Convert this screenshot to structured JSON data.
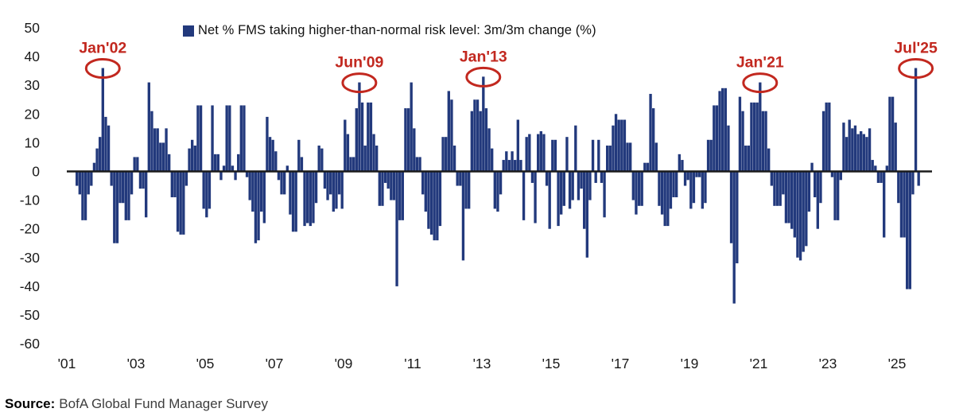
{
  "page": {
    "background": "#ffffff"
  },
  "legend": {
    "label": "Net % FMS taking higher-than-normal risk level: 3m/3m change (%)",
    "swatch_color": "#22397c"
  },
  "source": {
    "prefix": "Source:",
    "text": "BofA Global Fund Manager Survey"
  },
  "colors": {
    "bar": "#22397c",
    "annotation_red": "#c2281f",
    "axis_line": "#1b1b1b",
    "tick_text": "#1a1a1a",
    "source_text": "#3d3d3d"
  },
  "chart_data": {
    "type": "bar",
    "title": "",
    "legend_entry": "Net % FMS taking higher-than-normal risk level: 3m/3m change (%)",
    "frequency": "monthly",
    "start_month": "2001-04",
    "end_month": "2025-08",
    "ylim": [
      -60,
      50
    ],
    "grid": false,
    "legend_position": "top-center",
    "yticks": [
      50,
      40,
      30,
      20,
      10,
      0,
      -10,
      -20,
      -30,
      -40,
      -50,
      -60
    ],
    "xticks": [
      "'01",
      "'03",
      "'05",
      "'07",
      "'09",
      "'11",
      "'13",
      "'15",
      "'17",
      "'19",
      "'21",
      "'23",
      "'25"
    ],
    "values": [
      -5,
      -8,
      -17,
      -17,
      -8,
      -5,
      3,
      8,
      12,
      36,
      19,
      16,
      -5,
      -25,
      -25,
      -11,
      -11,
      -17,
      -17,
      -8,
      5,
      5,
      -6,
      -6,
      -16,
      31,
      21,
      15,
      15,
      10,
      10,
      15,
      6,
      -9,
      -9,
      -21,
      -22,
      -22,
      -5,
      8,
      11,
      9,
      23,
      23,
      -13,
      -16,
      -13,
      23,
      6,
      6,
      -3,
      2,
      23,
      23,
      2,
      -3,
      6,
      23,
      23,
      -2,
      -10,
      -14,
      -25,
      -24,
      -14,
      -18,
      19,
      12,
      11,
      7,
      -3,
      -8,
      -8,
      2,
      -15,
      -21,
      -21,
      11,
      5,
      -19,
      -18,
      -19,
      -18,
      -11,
      9,
      8,
      -6,
      -10,
      -8,
      -14,
      -13,
      -8,
      -13,
      18,
      13,
      5,
      5,
      22,
      31,
      24,
      9,
      24,
      24,
      13,
      9,
      -12,
      -12,
      -4,
      -6,
      -10,
      -10,
      -40,
      -17,
      -17,
      22,
      22,
      31,
      15,
      5,
      5,
      -8,
      -14,
      -20,
      -22,
      -24,
      -24,
      -19,
      12,
      12,
      28,
      25,
      9,
      -5,
      -5,
      -31,
      -13,
      -13,
      21,
      25,
      25,
      21,
      33,
      22,
      15,
      8,
      -13,
      -14,
      -8,
      4,
      7,
      4,
      7,
      4,
      18,
      4,
      -17,
      12,
      13,
      -4,
      -18,
      13,
      14,
      13,
      -5,
      -20,
      11,
      11,
      -19,
      -15,
      -12,
      12,
      -13,
      -10,
      16,
      -10,
      -6,
      -20,
      -30,
      -10,
      11,
      -4,
      11,
      -4,
      -16,
      9,
      9,
      16,
      20,
      18,
      18,
      18,
      10,
      10,
      -10,
      -15,
      -12,
      -12,
      3,
      3,
      27,
      22,
      10,
      -12,
      -15,
      -19,
      -19,
      -13,
      -9,
      -9,
      6,
      4,
      -5,
      -3,
      -13,
      -11,
      -2,
      -2,
      -13,
      -11,
      11,
      11,
      23,
      23,
      28,
      29,
      29,
      16,
      -25,
      -46,
      -32,
      26,
      21,
      9,
      9,
      24,
      24,
      24,
      31,
      21,
      21,
      8,
      -5,
      -12,
      -12,
      -12,
      -8,
      -18,
      -18,
      -20,
      -23,
      -30,
      -31,
      -28,
      -26,
      -14,
      3,
      -9,
      -20,
      -11,
      21,
      24,
      24,
      -2,
      -17,
      -17,
      -3,
      17,
      12,
      18,
      15,
      16,
      13,
      14,
      13,
      12,
      15,
      4,
      2,
      -4,
      -4,
      -23,
      2,
      26,
      26,
      17,
      -11,
      -23,
      -23,
      -41,
      -41,
      -8,
      36,
      -5
    ],
    "annotations": [
      {
        "label": "Jan'02",
        "month": "2002-01",
        "value": 36
      },
      {
        "label": "Jun'09",
        "month": "2009-06",
        "value": 31
      },
      {
        "label": "Jan'13",
        "month": "2013-01",
        "value": 33
      },
      {
        "label": "Jan'21",
        "month": "2021-01",
        "value": 31
      },
      {
        "label": "Jul'25",
        "month": "2025-07",
        "value": 36
      }
    ]
  }
}
